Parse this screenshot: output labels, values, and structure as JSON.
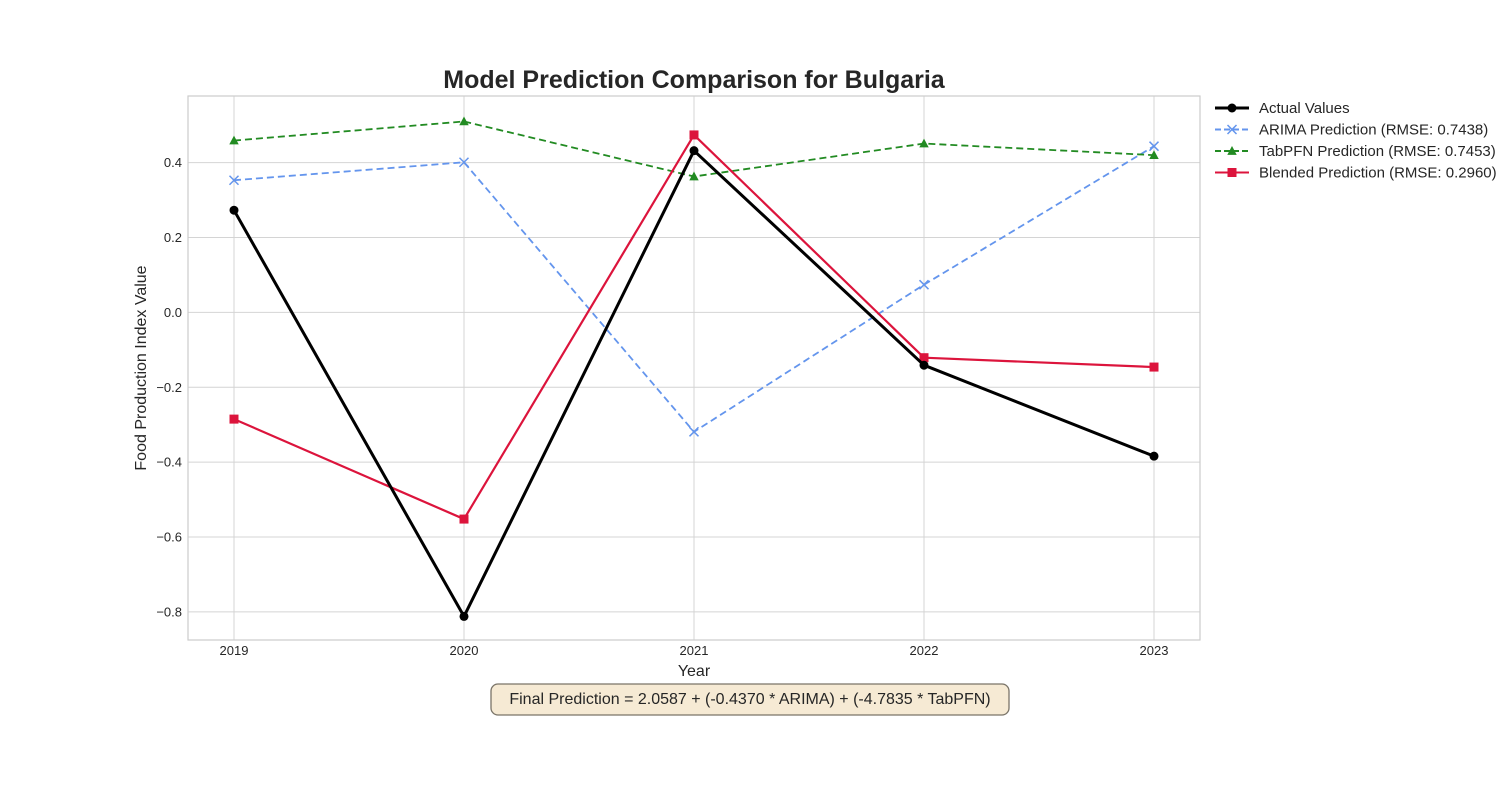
{
  "chart_data": {
    "type": "line",
    "title": "Model Prediction Comparison for Bulgaria",
    "xlabel": "Year",
    "ylabel": "Food Production Index Value",
    "x": [
      "2019",
      "2020",
      "2021",
      "2022",
      "2023"
    ],
    "y_ticks": [
      "0.4",
      "0.2",
      "0.0",
      "−0.2",
      "−0.4",
      "−0.6",
      "−0.8"
    ],
    "y_tick_values": [
      0.4,
      0.2,
      0.0,
      -0.2,
      -0.4,
      -0.6,
      -0.8
    ],
    "ylim": [
      -0.875,
      0.578
    ],
    "grid": true,
    "legend_position": "outside-top-right",
    "series": [
      {
        "name": "Actual Values",
        "values": [
          0.273,
          -0.812,
          0.432,
          -0.141,
          -0.384
        ],
        "color": "#000000",
        "dash": "solid",
        "marker": "circle"
      },
      {
        "name": "ARIMA Prediction (RMSE: 0.7438)",
        "values": [
          0.353,
          0.401,
          -0.319,
          0.074,
          0.444
        ],
        "color": "#6495ed",
        "dash": "dashed",
        "marker": "x"
      },
      {
        "name": "TabPFN Prediction (RMSE: 0.7453)",
        "values": [
          0.459,
          0.51,
          0.363,
          0.451,
          0.42
        ],
        "color": "#228b22",
        "dash": "dashed",
        "marker": "triangle"
      },
      {
        "name": "Blended Prediction (RMSE: 0.2960)",
        "values": [
          -0.285,
          -0.552,
          0.474,
          -0.121,
          -0.146
        ],
        "color": "#dc143c",
        "dash": "solid",
        "marker": "square"
      }
    ],
    "annotation": "Final Prediction = 2.0587 + (-0.4370 * ARIMA) + (-4.7835 * TabPFN)"
  }
}
